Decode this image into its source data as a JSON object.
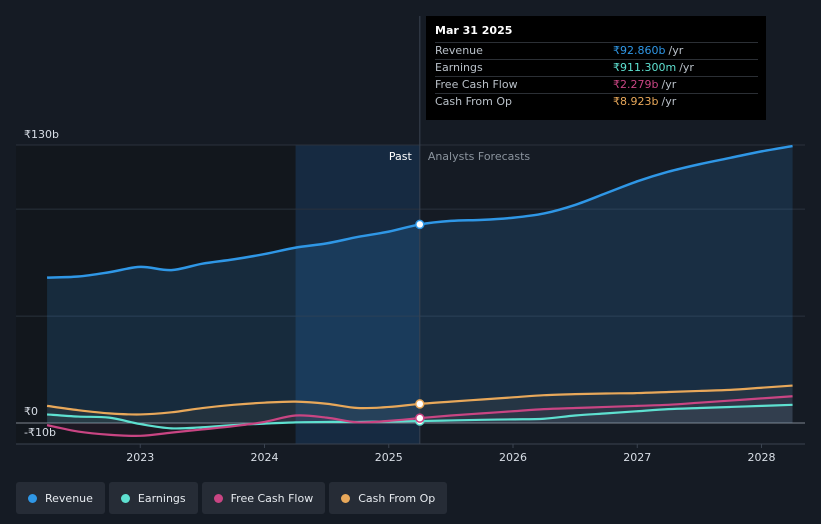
{
  "colors": {
    "revenue": "#2f97e6",
    "earnings": "#5ee0d0",
    "free_cash_flow": "#c94583",
    "cash_from_op": "#e8a85a"
  },
  "tooltip": {
    "date": "Mar 31 2025",
    "rows": [
      {
        "label": "Revenue",
        "value": "₹92.860b",
        "unit": "/yr",
        "color": "#2f97e6"
      },
      {
        "label": "Earnings",
        "value": "₹911.300m",
        "unit": "/yr",
        "color": "#5ee0d0"
      },
      {
        "label": "Free Cash Flow",
        "value": "₹2.279b",
        "unit": "/yr",
        "color": "#c94583"
      },
      {
        "label": "Cash From Op",
        "value": "₹8.923b",
        "unit": "/yr",
        "color": "#e8a85a"
      }
    ]
  },
  "legend": [
    {
      "label": "Revenue",
      "color": "#2f97e6"
    },
    {
      "label": "Earnings",
      "color": "#5ee0d0"
    },
    {
      "label": "Free Cash Flow",
      "color": "#c94583"
    },
    {
      "label": "Cash From Op",
      "color": "#e8a85a"
    }
  ],
  "chart_data": {
    "type": "area",
    "title": "",
    "xlabel": "",
    "ylabel": "",
    "ylim": [
      -10,
      130
    ],
    "x_ticks": [
      "2023",
      "2024",
      "2025",
      "2026",
      "2027",
      "2028"
    ],
    "x_tick_values": [
      2023.0,
      2024.0,
      2025.0,
      2026.0,
      2027.0,
      2028.0
    ],
    "y_labels": [
      {
        "label": "₹130b",
        "value": 130
      },
      {
        "label": "₹0",
        "value": 0
      },
      {
        "label": "-₹10b",
        "value": -10
      }
    ],
    "gridlines": [
      130,
      100,
      50,
      0
    ],
    "past_label": "Past",
    "forecast_label": "Analysts Forecasts",
    "divider_x": 2025.25,
    "highlight_range": [
      2024.25,
      2025.25
    ],
    "x_range": [
      2022.0,
      2028.35
    ],
    "series": [
      {
        "name": "Revenue",
        "color": "#2f97e6",
        "fill": true,
        "values": [
          [
            2022.25,
            68
          ],
          [
            2022.5,
            68.5
          ],
          [
            2022.75,
            70.5
          ],
          [
            2023.0,
            73
          ],
          [
            2023.25,
            71.5
          ],
          [
            2023.5,
            74.5
          ],
          [
            2023.75,
            76.5
          ],
          [
            2024.0,
            79
          ],
          [
            2024.25,
            82
          ],
          [
            2024.5,
            84
          ],
          [
            2024.75,
            87
          ],
          [
            2025.0,
            89.5
          ],
          [
            2025.25,
            92.86
          ],
          [
            2025.5,
            94.5
          ],
          [
            2025.75,
            95
          ],
          [
            2026.0,
            96
          ],
          [
            2026.25,
            98
          ],
          [
            2026.5,
            102
          ],
          [
            2026.75,
            107.5
          ],
          [
            2027.0,
            113
          ],
          [
            2027.25,
            117.5
          ],
          [
            2027.5,
            121
          ],
          [
            2027.75,
            124
          ],
          [
            2028.0,
            127
          ],
          [
            2028.25,
            129.5
          ]
        ]
      },
      {
        "name": "Earnings",
        "color": "#5ee0d0",
        "fill": false,
        "values": [
          [
            2022.25,
            4
          ],
          [
            2022.5,
            3
          ],
          [
            2022.75,
            2.5
          ],
          [
            2023.0,
            -0.5
          ],
          [
            2023.25,
            -2.5
          ],
          [
            2023.5,
            -2
          ],
          [
            2023.75,
            -1
          ],
          [
            2024.0,
            -0.3
          ],
          [
            2024.25,
            0.3
          ],
          [
            2024.5,
            0.5
          ],
          [
            2024.75,
            0.5
          ],
          [
            2025.0,
            0.7
          ],
          [
            2025.25,
            0.91
          ],
          [
            2025.5,
            1.2
          ],
          [
            2025.75,
            1.5
          ],
          [
            2026.0,
            1.7
          ],
          [
            2026.25,
            2
          ],
          [
            2026.5,
            3.5
          ],
          [
            2026.75,
            4.5
          ],
          [
            2027.0,
            5.5
          ],
          [
            2027.25,
            6.5
          ],
          [
            2027.5,
            7
          ],
          [
            2027.75,
            7.5
          ],
          [
            2028.0,
            8
          ],
          [
            2028.25,
            8.5
          ]
        ]
      },
      {
        "name": "Free Cash Flow",
        "color": "#c94583",
        "fill": false,
        "values": [
          [
            2022.25,
            -1
          ],
          [
            2022.5,
            -4
          ],
          [
            2022.75,
            -5.5
          ],
          [
            2023.0,
            -6
          ],
          [
            2023.25,
            -4.5
          ],
          [
            2023.5,
            -3
          ],
          [
            2023.75,
            -1.5
          ],
          [
            2024.0,
            0.5
          ],
          [
            2024.25,
            3.5
          ],
          [
            2024.5,
            2.5
          ],
          [
            2024.75,
            0.3
          ],
          [
            2025.0,
            1
          ],
          [
            2025.25,
            2.28
          ],
          [
            2025.5,
            3.5
          ],
          [
            2025.75,
            4.5
          ],
          [
            2026.0,
            5.5
          ],
          [
            2026.25,
            6.5
          ],
          [
            2026.5,
            7
          ],
          [
            2026.75,
            7.5
          ],
          [
            2027.0,
            8
          ],
          [
            2027.25,
            8.5
          ],
          [
            2027.5,
            9.5
          ],
          [
            2027.75,
            10.5
          ],
          [
            2028.0,
            11.5
          ],
          [
            2028.25,
            12.5
          ]
        ]
      },
      {
        "name": "Cash From Op",
        "color": "#e8a85a",
        "fill": false,
        "values": [
          [
            2022.25,
            8
          ],
          [
            2022.5,
            6
          ],
          [
            2022.75,
            4.5
          ],
          [
            2023.0,
            4
          ],
          [
            2023.25,
            5
          ],
          [
            2023.5,
            7
          ],
          [
            2023.75,
            8.5
          ],
          [
            2024.0,
            9.5
          ],
          [
            2024.25,
            10
          ],
          [
            2024.5,
            9
          ],
          [
            2024.75,
            7
          ],
          [
            2025.0,
            7.5
          ],
          [
            2025.25,
            8.92
          ],
          [
            2025.5,
            10
          ],
          [
            2025.75,
            11
          ],
          [
            2026.0,
            12
          ],
          [
            2026.25,
            13
          ],
          [
            2026.5,
            13.5
          ],
          [
            2026.75,
            13.8
          ],
          [
            2027.0,
            14
          ],
          [
            2027.25,
            14.5
          ],
          [
            2027.5,
            15
          ],
          [
            2027.75,
            15.5
          ],
          [
            2028.0,
            16.5
          ],
          [
            2028.25,
            17.5
          ]
        ]
      }
    ]
  }
}
